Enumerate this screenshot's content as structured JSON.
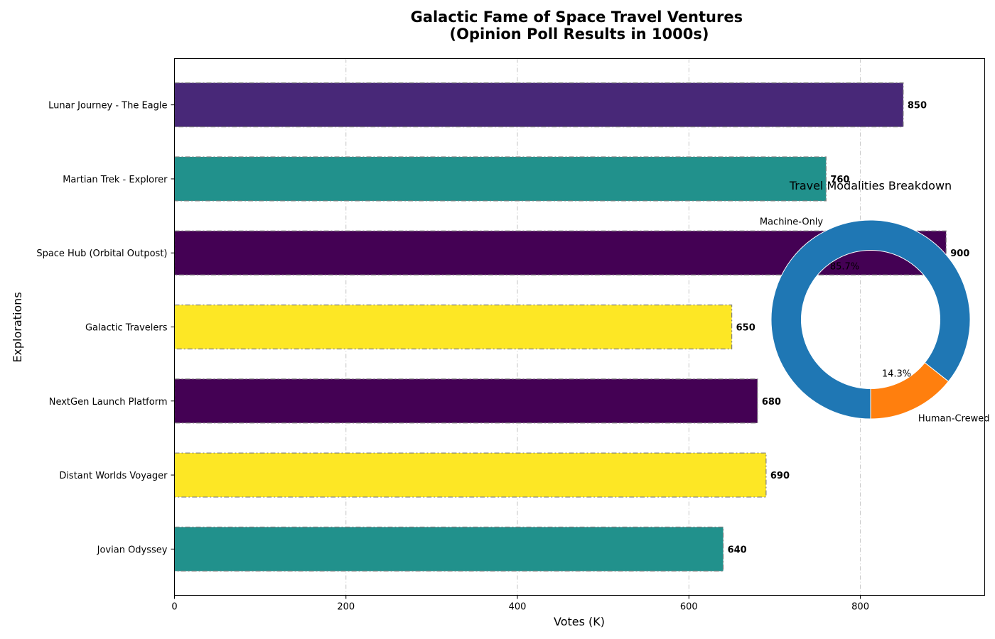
{
  "chart_data": [
    {
      "type": "bar",
      "orientation": "horizontal",
      "title": "Galactic Fame of Space Travel Ventures\n(Opinion Poll Results in 1000s)",
      "xlabel": "Votes (K)",
      "ylabel": "Explorations",
      "xlim": [
        0,
        945
      ],
      "xticks": [
        0,
        200,
        400,
        600,
        800
      ],
      "grid": "x-dashed",
      "categories": [
        "Lunar Journey - The Eagle",
        "Martian Trek - Explorer",
        "Space Hub (Orbital Outpost)",
        "Galactic Travelers",
        "NextGen Launch Platform",
        "Distant Worlds Voyager",
        "Jovian Odyssey"
      ],
      "values": [
        850,
        760,
        900,
        650,
        680,
        690,
        640
      ],
      "colors": [
        "#482878",
        "#21918c",
        "#440154",
        "#fde725",
        "#440154",
        "#fde725",
        "#21918c"
      ],
      "edge_color": "#808080"
    },
    {
      "type": "pie",
      "style": "donut",
      "title": "Travel Modalities Breakdown",
      "labels": [
        "Human-Crewed",
        "Machine-Only"
      ],
      "values": [
        14.3,
        85.7
      ],
      "percent_labels": [
        "14.3%",
        "85.7%"
      ],
      "colors": [
        "#ff7f0e",
        "#1f77b4"
      ]
    }
  ]
}
